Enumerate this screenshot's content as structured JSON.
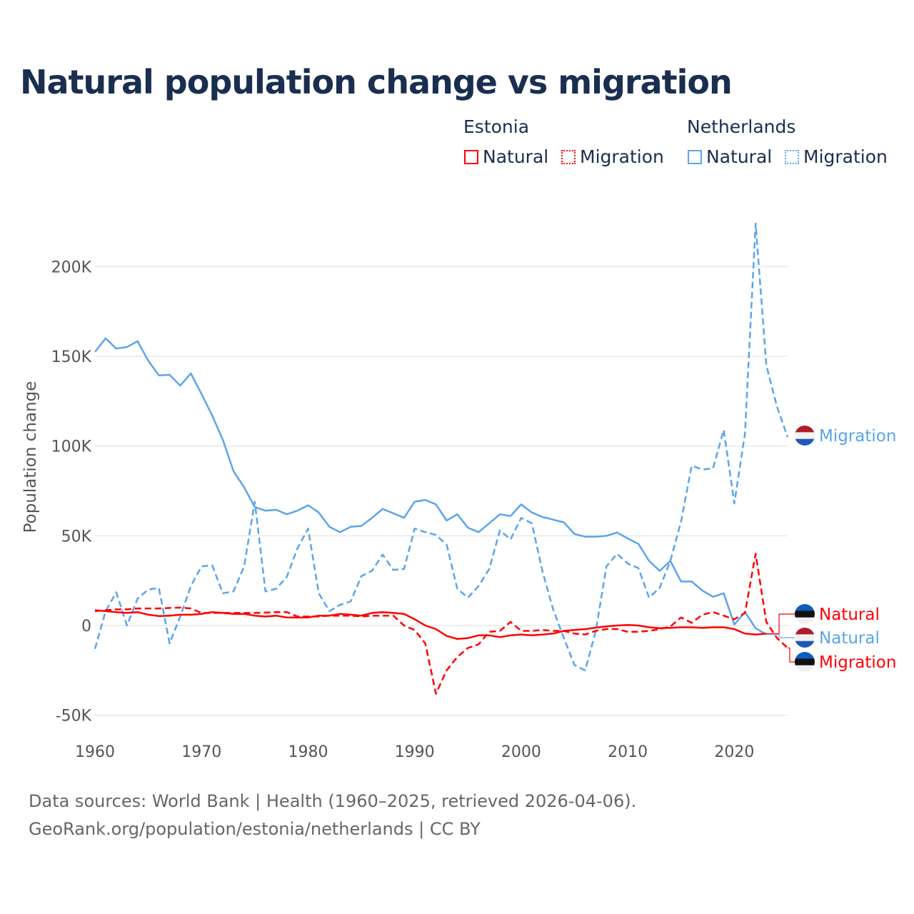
{
  "chart_data": {
    "type": "line",
    "title": "Natural population change vs migration",
    "xlabel": "",
    "ylabel": "Population change",
    "xlim": [
      1960,
      2025
    ],
    "ylim": [
      -50000,
      200000
    ],
    "x_ticks": [
      1960,
      1970,
      1980,
      1990,
      2000,
      2010,
      2020
    ],
    "x_tick_labels": [
      "1960",
      "1970",
      "1980",
      "1990",
      "2000",
      "2010",
      "2020"
    ],
    "y_ticks": [
      -50000,
      0,
      50000,
      100000,
      150000,
      200000
    ],
    "y_tick_labels": [
      "-50K",
      "0",
      "50K",
      "100K",
      "150K",
      "200K"
    ],
    "grid": true,
    "legend": {
      "placement": "top-right",
      "groups": [
        {
          "country": "Estonia",
          "items": [
            "Natural",
            "Migration"
          ]
        },
        {
          "country": "Netherlands",
          "items": [
            "Natural",
            "Migration"
          ]
        }
      ]
    },
    "colors": {
      "Estonia": "#ff0000",
      "Netherlands": "#5aa5ea"
    },
    "series": [
      {
        "country": "Netherlands",
        "name": "Natural",
        "end_label": "Natural",
        "dash": false,
        "start_year": 1960,
        "values": [
          152500,
          160000,
          154300,
          155200,
          158400,
          147600,
          139400,
          139700,
          133700,
          140500,
          129000,
          117000,
          103500,
          86000,
          77000,
          66000,
          64000,
          64500,
          62000,
          64000,
          67000,
          63000,
          55000,
          52000,
          55000,
          55500,
          60000,
          65000,
          62500,
          60000,
          69000,
          70000,
          67500,
          58500,
          62000,
          54500,
          52000,
          57000,
          62000,
          61000,
          67500,
          63000,
          60500,
          59000,
          57500,
          51000,
          49500,
          49500,
          50000,
          51800,
          48500,
          45500,
          36000,
          30500,
          36000,
          24500,
          24500,
          19500,
          16000,
          18000,
          500,
          7500,
          -1500,
          -5000
        ]
      },
      {
        "country": "Netherlands",
        "name": "Migration",
        "end_label": "Migration",
        "dash": true,
        "start_year": 1960,
        "values": [
          -13000,
          8000,
          18500,
          0,
          15000,
          20000,
          21000,
          -10000,
          5000,
          22000,
          33000,
          33500,
          18000,
          19000,
          33000,
          69000,
          19000,
          20500,
          27000,
          43000,
          54000,
          18000,
          8000,
          11500,
          13500,
          27500,
          30500,
          39500,
          31000,
          31500,
          54000,
          52000,
          50500,
          45000,
          20500,
          15500,
          22000,
          31500,
          53000,
          48000,
          60000,
          57000,
          30000,
          9000,
          -7000,
          -22000,
          -25000,
          -3000,
          33000,
          40000,
          34500,
          32000,
          15500,
          21000,
          36000,
          58000,
          89000,
          87000,
          87500,
          109000,
          68000,
          107000,
          224000,
          145000,
          122000,
          105000
        ]
      },
      {
        "country": "Estonia",
        "name": "Natural",
        "end_label": "Natural",
        "dash": false,
        "start_year": 1960,
        "values": [
          8500,
          8000,
          7500,
          7000,
          7500,
          6000,
          5300,
          5500,
          6000,
          6000,
          6500,
          7500,
          7000,
          6500,
          6500,
          5500,
          5000,
          5500,
          4500,
          4500,
          4500,
          5500,
          5500,
          6500,
          6000,
          5500,
          7000,
          7500,
          7000,
          6500,
          3500,
          0,
          -2000,
          -5800,
          -7500,
          -7000,
          -5500,
          -5500,
          -6500,
          -5500,
          -5000,
          -5500,
          -5000,
          -4500,
          -3000,
          -2500,
          -2000,
          -1200,
          -500,
          0,
          300,
          0,
          -1000,
          -1500,
          -1300,
          -1000,
          -1000,
          -1300,
          -1000,
          -1000,
          -2000,
          -4500,
          -5000,
          -4500
        ]
      },
      {
        "country": "Estonia",
        "name": "Migration",
        "end_label": "Migration",
        "dash": true,
        "start_year": 1960,
        "values": [
          8000,
          8500,
          9000,
          9000,
          9500,
          9500,
          9500,
          9800,
          10000,
          9500,
          7000,
          7000,
          7000,
          7000,
          7000,
          7000,
          7200,
          7500,
          7500,
          5000,
          5000,
          5000,
          5500,
          5500,
          5500,
          5000,
          5500,
          5500,
          5500,
          0,
          -2500,
          -10000,
          -38000,
          -25000,
          -17500,
          -12500,
          -10500,
          -3500,
          -3000,
          2000,
          -3000,
          -3000,
          -2500,
          -3000,
          -3000,
          -4500,
          -5000,
          -3000,
          -2000,
          -2000,
          -3500,
          -3500,
          -3000,
          -2000,
          -500,
          4500,
          1500,
          6000,
          7500,
          5500,
          3500,
          7000,
          40000,
          2000,
          -7000,
          -12500
        ]
      }
    ]
  },
  "legend": {
    "estonia": {
      "label": "Estonia",
      "natural": "Natural",
      "migration": "Migration"
    },
    "netherlands": {
      "label": "Netherlands",
      "natural": "Natural",
      "migration": "Migration"
    }
  },
  "footer": {
    "line1": "Data sources: World Bank | Health (1960–2025, retrieved 2026-04-06).",
    "line2": "GeoRank.org/population/estonia/netherlands | CC BY"
  }
}
